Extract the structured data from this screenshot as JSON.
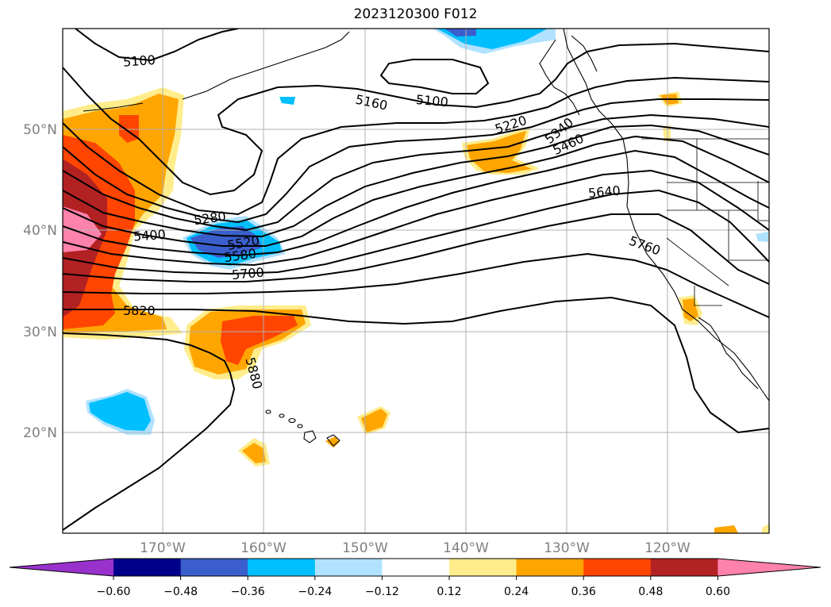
{
  "title": "2023120300 F012",
  "latitude_labels": [
    "50°N",
    "40°N",
    "30°N",
    "20°N"
  ],
  "longitude_labels": [
    "170°W",
    "160°W",
    "150°W",
    "140°W",
    "130°W",
    "120°W"
  ],
  "contour_labels": [
    "5100",
    "5160",
    "5100",
    "5220",
    "5340",
    "5460",
    "5280",
    "5400",
    "5520",
    "5580",
    "5700",
    "5640",
    "5760",
    "5820",
    "5880"
  ],
  "colorbar": {
    "ticks": [
      "−0.60",
      "−0.48",
      "−0.36",
      "−0.24",
      "−0.12",
      "0.12",
      "0.24",
      "0.36",
      "0.48",
      "0.60"
    ],
    "colors": [
      "#9932cc",
      "#00008b",
      "#3a5fcd",
      "#00bfff",
      "#b0e2ff",
      "#ffffff",
      "#ffec8b",
      "#ffa500",
      "#ff4500",
      "#b22222",
      "#ff82ab"
    ]
  }
}
